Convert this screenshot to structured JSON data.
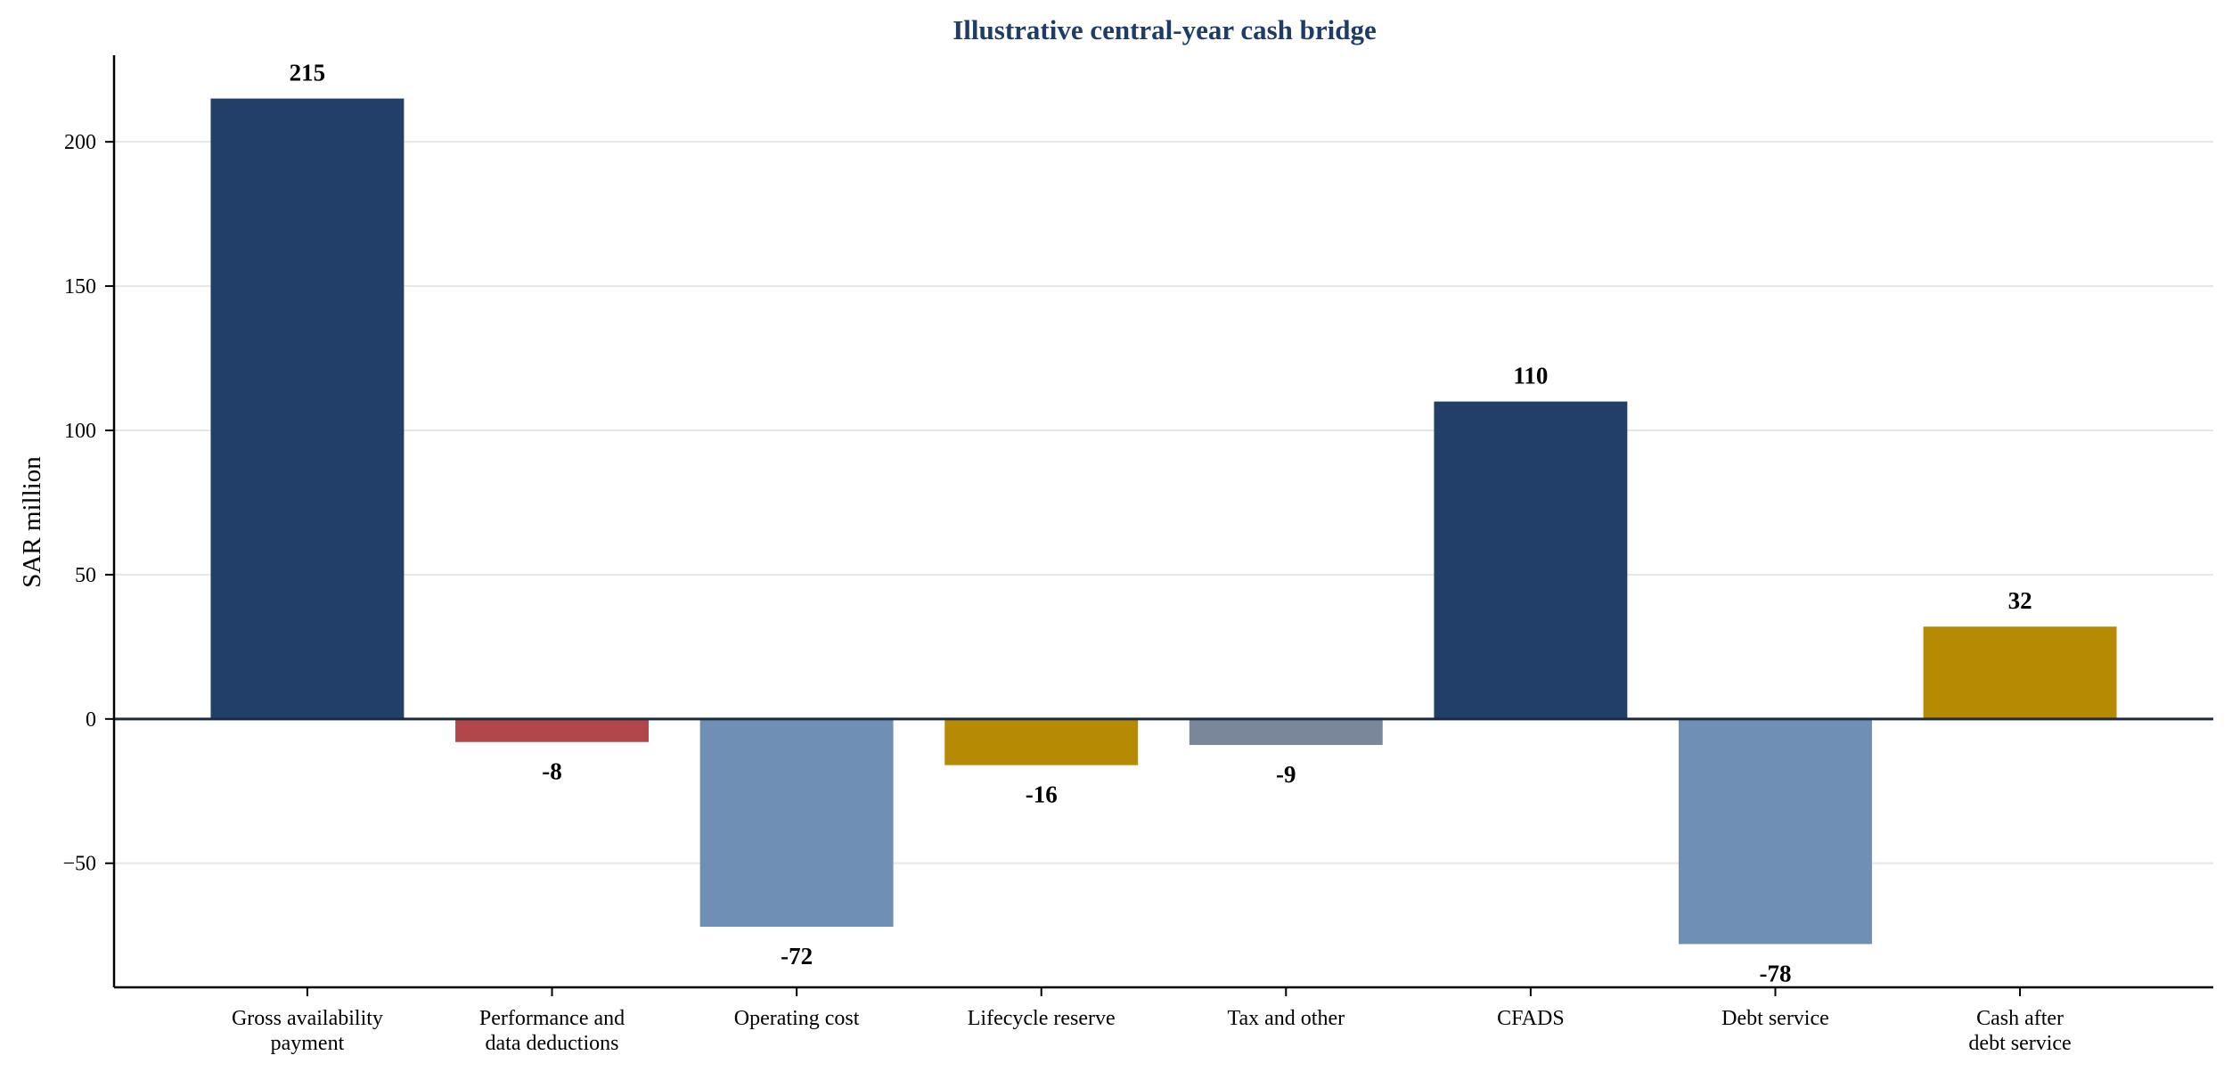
{
  "chart_data": {
    "type": "bar",
    "title": "Illustrative central-year cash bridge",
    "xlabel": "",
    "ylabel": "SAR million",
    "categories": [
      [
        "Gross availability",
        "payment"
      ],
      [
        "Performance and",
        "data deductions"
      ],
      [
        "Operating cost"
      ],
      [
        "Lifecycle reserve"
      ],
      [
        "Tax and other"
      ],
      [
        "CFADS"
      ],
      [
        "Debt service"
      ],
      [
        "Cash after",
        "debt service"
      ]
    ],
    "values": [
      215,
      -8,
      -72,
      -16,
      -9,
      110,
      -78,
      32
    ],
    "data_labels": [
      "215",
      "-8",
      "-72",
      "-16",
      "-9",
      "110",
      "-78",
      "32"
    ],
    "bar_colors": [
      "#213f69",
      "#b1474a",
      "#6f8fb5",
      "#b78a03",
      "#7a8699",
      "#213f69",
      "#6f8fb5",
      "#b78a03"
    ],
    "ylim": [
      -93,
      230
    ],
    "yticks": [
      -50,
      0,
      50,
      100,
      150,
      200
    ],
    "ytick_labels": [
      "−50",
      "0",
      "50",
      "100",
      "150",
      "200"
    ],
    "grid": true,
    "legend": "none",
    "colors": {
      "title": "#1f3c66",
      "axis": "#000000",
      "zero_line": "#1c2b40",
      "grid": "#e6e6e6"
    }
  }
}
